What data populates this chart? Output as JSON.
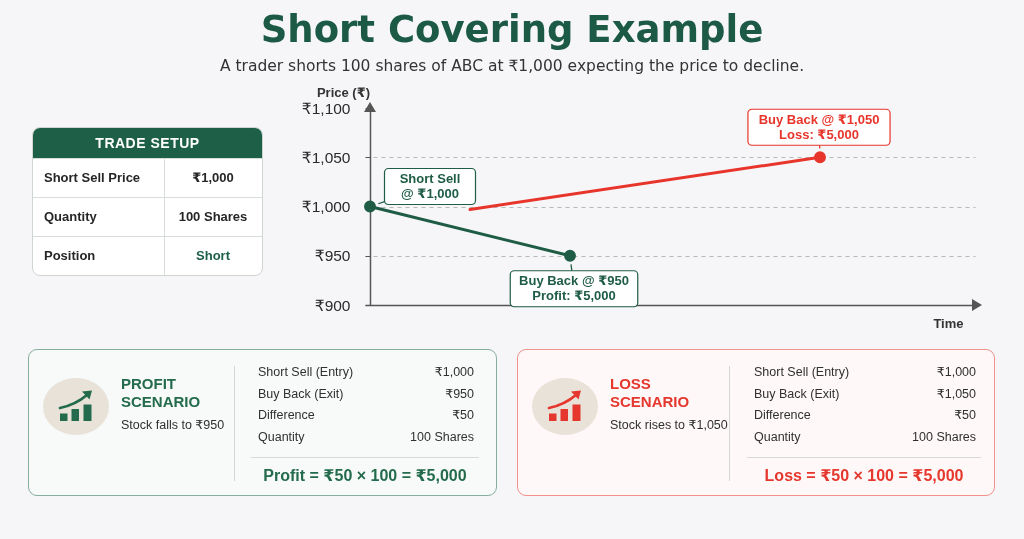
{
  "chart_data": [
    {
      "type": "other",
      "title": "TRADE SETUP",
      "color": "#1e5f48",
      "annotations": [
        "Short Sell Price",
        "₹1,000",
        "Quantity",
        "100 Shares",
        "Position",
        "Short"
      ]
    },
    {
      "type": "line",
      "title": "Short Covering Example",
      "subtitle": "A trader shorts 100 shares of ABC at ₹1,000 expecting the price to decline.",
      "xlabel": "Time",
      "ylabel": "Price (₹)",
      "categories": [
        null,
        null,
        null,
        null,
        null,
        null,
        null,
        null,
        null,
        null,
        null,
        null,
        null,
        null,
        null,
        null,
        null,
        null,
        null,
        null,
        null,
        null,
        null,
        null,
        null,
        null,
        null,
        null,
        null,
        null,
        null,
        null,
        null,
        null,
        null,
        null,
        null,
        null,
        null,
        null,
        null,
        null,
        null,
        null,
        null,
        null,
        null,
        null,
        null,
        null,
        null,
        null,
        null,
        null,
        null,
        null,
        null,
        null,
        null,
        null,
        null
      ],
      "series": [
        {
          "color": "#1f5c45",
          "marker": "circle",
          "values": [
            1000,
            null,
            null,
            null,
            null,
            null,
            null,
            null,
            null,
            null,
            null,
            null,
            null,
            null,
            null,
            null,
            null,
            null,
            null,
            null,
            950,
            null,
            null,
            null,
            null,
            null,
            null,
            null,
            null,
            null,
            null,
            null,
            null,
            null,
            null,
            null,
            null,
            null,
            null,
            null,
            null,
            null,
            null,
            null,
            null,
            null,
            null,
            null,
            null,
            null,
            null,
            null,
            null,
            null,
            null,
            null,
            null,
            null,
            null,
            null,
            null
          ]
        },
        {
          "color": "#e8352b",
          "values": [
            null,
            null,
            null,
            null,
            null,
            null,
            null,
            null,
            null,
            null,
            997,
            null,
            null,
            null,
            null,
            null,
            null,
            null,
            null,
            null,
            null,
            null,
            null,
            null,
            null,
            null,
            null,
            null,
            null,
            null,
            null,
            null,
            null,
            null,
            null,
            null,
            null,
            null,
            null,
            null,
            null,
            null,
            null,
            null,
            null,
            1050,
            null,
            null,
            null,
            null,
            null,
            null,
            null,
            null,
            null,
            null,
            null,
            null,
            null,
            null,
            null
          ]
        },
        {
          "type": "scatter",
          "color": "#e8352b",
          "values": [
            null,
            null,
            null,
            null,
            null,
            null,
            null,
            null,
            null,
            null,
            null,
            null,
            null,
            null,
            null,
            null,
            null,
            null,
            null,
            null,
            null,
            null,
            null,
            null,
            null,
            null,
            null,
            null,
            null,
            null,
            null,
            null,
            null,
            null,
            null,
            null,
            null,
            null,
            null,
            null,
            null,
            null,
            null,
            null,
            null,
            1050,
            null,
            null,
            null,
            null,
            null,
            null,
            null,
            null,
            null,
            null,
            null,
            null,
            null,
            null,
            null
          ]
        }
      ],
      "ylim": [
        900,
        1100
      ],
      "yticks": [
        {
          "value": 900,
          "label": "₹900"
        },
        {
          "value": 950,
          "label": "₹950"
        },
        {
          "value": 1000,
          "label": "₹1,000"
        },
        {
          "value": 1050,
          "label": "₹1,050"
        },
        {
          "value": 1100,
          "label": "₹1,100"
        }
      ],
      "grid": "y",
      "tick_labels": "y",
      "annotations": [
        "Short Sell\n@ ₹1,000",
        {
          "text": "Buy Back @ ₹950\nProfit: ₹5,000",
          "y": 950
        },
        {
          "text": "Buy Back @ ₹1,050\nLoss: ₹5,000",
          "y": 1050
        }
      ]
    },
    {
      "type": "other",
      "title": "PROFIT SCENARIO",
      "subtitle": "Stock falls to ₹950",
      "color": "#236b4c",
      "annotations": [
        "Short Sell (Entry)",
        "₹1,000",
        "Buy Back (Exit)",
        "₹950",
        "Difference",
        "₹50",
        "Quantity",
        "100 Shares",
        "Profit = ₹50 × 100 = ₹5,000"
      ]
    },
    {
      "type": "other",
      "title": "LOSS SCENARIO",
      "subtitle": "Stock rises to ₹1,050",
      "color": "#e5372d",
      "annotations": [
        "Short Sell (Entry)",
        "₹1,000",
        "Buy Back (Exit)",
        "₹1,050",
        "Difference",
        "₹50",
        "Quantity",
        "100 Shares",
        "Loss = ₹50 × 100 = ₹5,000"
      ]
    }
  ]
}
